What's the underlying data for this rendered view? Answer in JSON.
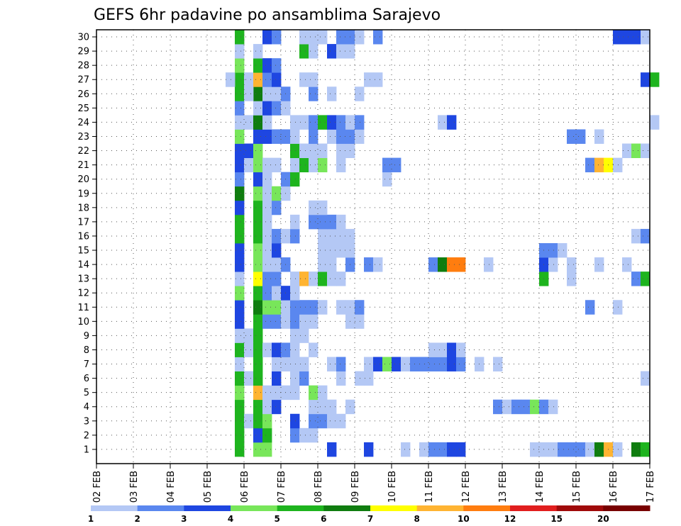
{
  "chart_data": {
    "type": "heatmap",
    "title": "GEFS 6hr padavine po ansamblima Sarajevo",
    "xlabel": "",
    "ylabel": "",
    "x_ticks": [
      "02 FEB",
      "03 FEB",
      "04 FEB",
      "05 FEB",
      "06 FEB",
      "07 FEB",
      "08 FEB",
      "09 FEB",
      "10 FEB",
      "11 FEB",
      "12 FEB",
      "13 FEB",
      "14 FEB",
      "15 FEB",
      "16 FEB",
      "17 FEB"
    ],
    "y_ticks": [
      "1",
      "2",
      "3",
      "4",
      "5",
      "6",
      "7",
      "8",
      "9",
      "10",
      "11",
      "12",
      "13",
      "14",
      "15",
      "16",
      "17",
      "18",
      "19",
      "20",
      "21",
      "22",
      "23",
      "24",
      "25",
      "26",
      "27",
      "28",
      "29",
      "30"
    ],
    "time_step_hours": 6,
    "grid": "dotted",
    "colorbar": {
      "ticks": [
        "1",
        "2",
        "3",
        "4",
        "5",
        "6",
        "7",
        "8",
        "10",
        "12",
        "15",
        "20"
      ],
      "colors": [
        "#b4c8f5",
        "#5a87ef",
        "#1e46e1",
        "#78e65a",
        "#1eb41e",
        "#0f7d0f",
        "#ffff00",
        "#ffb432",
        "#ff7d0f",
        "#e11e1e",
        "#a00a0a",
        "#780000"
      ]
    },
    "cells": [
      [
        1,
        6.25,
        4
      ],
      [
        1,
        6.5,
        4
      ],
      [
        1,
        5.75,
        5
      ],
      [
        1,
        8.25,
        3
      ],
      [
        1,
        9.25,
        3
      ],
      [
        1,
        10.25,
        1
      ],
      [
        1,
        10.75,
        1
      ],
      [
        1,
        11.0,
        2
      ],
      [
        1,
        11.25,
        2
      ],
      [
        1,
        11.5,
        3
      ],
      [
        1,
        11.75,
        3
      ],
      [
        1,
        14.0,
        1
      ],
      [
        1,
        14.25,
        1
      ],
      [
        1,
        14.5,
        2
      ],
      [
        1,
        14.75,
        2
      ],
      [
        1,
        15.0,
        2
      ],
      [
        1,
        15.25,
        1
      ],
      [
        1,
        15.5,
        6
      ],
      [
        1,
        15.75,
        8
      ],
      [
        1,
        16.5,
        6
      ],
      [
        1,
        16.75,
        5
      ],
      [
        1,
        16.0,
        1
      ],
      [
        1,
        13.75,
        1
      ],
      [
        2,
        5.75,
        5
      ],
      [
        2,
        6.25,
        3
      ],
      [
        2,
        6.5,
        5
      ],
      [
        2,
        7.25,
        2
      ],
      [
        2,
        7.5,
        1
      ],
      [
        2,
        7.75,
        1
      ],
      [
        3,
        5.75,
        5
      ],
      [
        3,
        6.0,
        1
      ],
      [
        3,
        6.25,
        5
      ],
      [
        3,
        6.5,
        4
      ],
      [
        3,
        7.25,
        3
      ],
      [
        3,
        7.75,
        2
      ],
      [
        3,
        8.0,
        2
      ],
      [
        3,
        8.25,
        1
      ],
      [
        3,
        8.5,
        1
      ],
      [
        4,
        5.75,
        5
      ],
      [
        4,
        6.25,
        5
      ],
      [
        4,
        6.5,
        1
      ],
      [
        4,
        6.75,
        3
      ],
      [
        4,
        7.75,
        1
      ],
      [
        4,
        8.0,
        1
      ],
      [
        4,
        8.25,
        1
      ],
      [
        4,
        8.75,
        1
      ],
      [
        4,
        12.75,
        2
      ],
      [
        4,
        13.0,
        1
      ],
      [
        4,
        13.25,
        2
      ],
      [
        4,
        13.5,
        2
      ],
      [
        4,
        13.75,
        4
      ],
      [
        4,
        14.0,
        2
      ],
      [
        4,
        14.25,
        1
      ],
      [
        5,
        5.75,
        4
      ],
      [
        5,
        6.25,
        8
      ],
      [
        5,
        6.5,
        1
      ],
      [
        5,
        6.75,
        1
      ],
      [
        5,
        7.0,
        1
      ],
      [
        5,
        7.25,
        1
      ],
      [
        5,
        7.75,
        4
      ],
      [
        5,
        8.0,
        1
      ],
      [
        6,
        5.75,
        5
      ],
      [
        6,
        6.0,
        1
      ],
      [
        6,
        6.25,
        5
      ],
      [
        6,
        6.75,
        3
      ],
      [
        6,
        7.25,
        1
      ],
      [
        6,
        7.5,
        2
      ],
      [
        6,
        8.5,
        1
      ],
      [
        6,
        9.0,
        1
      ],
      [
        6,
        9.25,
        1
      ],
      [
        6,
        16.75,
        1
      ],
      [
        7,
        5.75,
        1
      ],
      [
        7,
        6.25,
        5
      ],
      [
        7,
        6.75,
        1
      ],
      [
        7,
        7.0,
        1
      ],
      [
        7,
        7.25,
        1
      ],
      [
        7,
        7.5,
        1
      ],
      [
        7,
        8.25,
        1
      ],
      [
        7,
        8.5,
        2
      ],
      [
        7,
        9.25,
        1
      ],
      [
        7,
        9.5,
        3
      ],
      [
        7,
        9.75,
        4
      ],
      [
        7,
        10.0,
        3
      ],
      [
        7,
        10.25,
        1
      ],
      [
        7,
        10.5,
        2
      ],
      [
        7,
        10.75,
        2
      ],
      [
        7,
        11.0,
        2
      ],
      [
        7,
        11.25,
        2
      ],
      [
        7,
        11.5,
        3
      ],
      [
        7,
        11.75,
        2
      ],
      [
        7,
        12.25,
        1
      ],
      [
        7,
        12.75,
        1
      ],
      [
        8,
        5.75,
        5
      ],
      [
        8,
        6.0,
        1
      ],
      [
        8,
        6.25,
        5
      ],
      [
        8,
        6.5,
        1
      ],
      [
        8,
        6.75,
        3
      ],
      [
        8,
        7.0,
        2
      ],
      [
        8,
        7.25,
        1
      ],
      [
        8,
        7.75,
        1
      ],
      [
        8,
        11.0,
        1
      ],
      [
        8,
        11.25,
        1
      ],
      [
        8,
        11.5,
        3
      ],
      [
        8,
        11.75,
        1
      ],
      [
        9,
        5.75,
        1
      ],
      [
        9,
        6.0,
        1
      ],
      [
        9,
        6.25,
        5
      ],
      [
        9,
        7.25,
        1
      ],
      [
        9,
        7.5,
        1
      ],
      [
        10,
        5.75,
        3
      ],
      [
        10,
        6.25,
        5
      ],
      [
        10,
        6.5,
        2
      ],
      [
        10,
        6.75,
        2
      ],
      [
        10,
        7.0,
        1
      ],
      [
        10,
        7.25,
        2
      ],
      [
        10,
        7.5,
        1
      ],
      [
        10,
        7.75,
        1
      ],
      [
        10,
        8.75,
        1
      ],
      [
        10,
        9.0,
        1
      ],
      [
        11,
        5.75,
        3
      ],
      [
        11,
        6.25,
        6
      ],
      [
        11,
        6.5,
        4
      ],
      [
        11,
        6.75,
        4
      ],
      [
        11,
        7.0,
        1
      ],
      [
        11,
        7.25,
        2
      ],
      [
        11,
        7.5,
        2
      ],
      [
        11,
        7.75,
        2
      ],
      [
        11,
        8.0,
        1
      ],
      [
        11,
        8.5,
        1
      ],
      [
        11,
        8.75,
        1
      ],
      [
        11,
        9.0,
        2
      ],
      [
        11,
        15.25,
        2
      ],
      [
        11,
        16.0,
        1
      ],
      [
        12,
        5.75,
        4
      ],
      [
        12,
        6.25,
        5
      ],
      [
        12,
        6.5,
        2
      ],
      [
        12,
        6.75,
        1
      ],
      [
        12,
        7.0,
        3
      ],
      [
        12,
        7.25,
        1
      ],
      [
        13,
        5.75,
        1
      ],
      [
        13,
        6.25,
        7
      ],
      [
        13,
        6.5,
        2
      ],
      [
        13,
        6.75,
        2
      ],
      [
        13,
        7.25,
        1
      ],
      [
        13,
        7.5,
        8
      ],
      [
        13,
        7.75,
        1
      ],
      [
        13,
        8.0,
        5
      ],
      [
        13,
        8.25,
        1
      ],
      [
        13,
        8.5,
        1
      ],
      [
        13,
        14.0,
        5
      ],
      [
        13,
        14.75,
        1
      ],
      [
        13,
        16.5,
        2
      ],
      [
        13,
        16.75,
        5
      ],
      [
        14,
        5.75,
        3
      ],
      [
        14,
        6.25,
        4
      ],
      [
        14,
        6.5,
        1
      ],
      [
        14,
        6.75,
        1
      ],
      [
        14,
        7.0,
        2
      ],
      [
        14,
        8.0,
        1
      ],
      [
        14,
        8.25,
        1
      ],
      [
        14,
        8.75,
        2
      ],
      [
        14,
        9.25,
        2
      ],
      [
        14,
        9.5,
        1
      ],
      [
        14,
        11.0,
        2
      ],
      [
        14,
        11.25,
        6
      ],
      [
        14,
        11.5,
        9
      ],
      [
        14,
        11.75,
        9
      ],
      [
        14,
        12.5,
        1
      ],
      [
        14,
        14.0,
        3
      ],
      [
        14,
        14.25,
        1
      ],
      [
        14,
        14.75,
        1
      ],
      [
        14,
        15.5,
        1
      ],
      [
        14,
        16.25,
        1
      ],
      [
        15,
        5.75,
        3
      ],
      [
        15,
        6.25,
        4
      ],
      [
        15,
        6.5,
        1
      ],
      [
        15,
        6.75,
        3
      ],
      [
        15,
        8.0,
        1
      ],
      [
        15,
        8.25,
        1
      ],
      [
        15,
        8.5,
        1
      ],
      [
        15,
        8.75,
        1
      ],
      [
        15,
        14.0,
        2
      ],
      [
        15,
        14.25,
        2
      ],
      [
        15,
        14.5,
        1
      ],
      [
        16,
        5.75,
        5
      ],
      [
        16,
        6.25,
        5
      ],
      [
        16,
        6.5,
        1
      ],
      [
        16,
        6.75,
        2
      ],
      [
        16,
        7.0,
        1
      ],
      [
        16,
        7.25,
        2
      ],
      [
        16,
        8.0,
        1
      ],
      [
        16,
        8.25,
        1
      ],
      [
        16,
        8.5,
        1
      ],
      [
        16,
        8.75,
        1
      ],
      [
        16,
        16.5,
        1
      ],
      [
        16,
        16.75,
        2
      ],
      [
        17,
        5.75,
        5
      ],
      [
        17,
        6.25,
        5
      ],
      [
        17,
        6.5,
        1
      ],
      [
        17,
        7.25,
        1
      ],
      [
        17,
        7.75,
        2
      ],
      [
        17,
        8.0,
        2
      ],
      [
        17,
        8.25,
        2
      ],
      [
        17,
        8.5,
        1
      ],
      [
        18,
        5.75,
        3
      ],
      [
        18,
        6.25,
        5
      ],
      [
        18,
        6.5,
        1
      ],
      [
        18,
        6.75,
        2
      ],
      [
        18,
        7.75,
        1
      ],
      [
        18,
        8.0,
        1
      ],
      [
        19,
        5.75,
        6
      ],
      [
        19,
        6.25,
        4
      ],
      [
        19,
        6.5,
        1
      ],
      [
        19,
        6.75,
        4
      ],
      [
        19,
        7.0,
        1
      ],
      [
        20,
        5.75,
        2
      ],
      [
        20,
        6.25,
        3
      ],
      [
        20,
        6.5,
        1
      ],
      [
        20,
        7.0,
        2
      ],
      [
        20,
        7.25,
        5
      ],
      [
        20,
        9.75,
        1
      ],
      [
        21,
        5.75,
        3
      ],
      [
        21,
        6.0,
        1
      ],
      [
        21,
        6.25,
        4
      ],
      [
        21,
        6.5,
        1
      ],
      [
        21,
        6.75,
        1
      ],
      [
        21,
        7.25,
        1
      ],
      [
        21,
        7.5,
        5
      ],
      [
        21,
        7.75,
        1
      ],
      [
        21,
        8.0,
        4
      ],
      [
        21,
        8.5,
        1
      ],
      [
        21,
        9.75,
        2
      ],
      [
        21,
        10.0,
        2
      ],
      [
        21,
        15.25,
        2
      ],
      [
        21,
        15.5,
        8
      ],
      [
        21,
        15.75,
        7
      ],
      [
        21,
        16.0,
        1
      ],
      [
        22,
        5.75,
        3
      ],
      [
        22,
        6.0,
        3
      ],
      [
        22,
        6.25,
        4
      ],
      [
        22,
        7.25,
        5
      ],
      [
        22,
        7.5,
        1
      ],
      [
        22,
        7.75,
        1
      ],
      [
        22,
        8.0,
        1
      ],
      [
        22,
        8.5,
        1
      ],
      [
        22,
        8.75,
        1
      ],
      [
        22,
        16.25,
        1
      ],
      [
        22,
        16.5,
        4
      ],
      [
        22,
        16.75,
        1
      ],
      [
        23,
        5.75,
        4
      ],
      [
        23,
        6.25,
        3
      ],
      [
        23,
        6.5,
        3
      ],
      [
        23,
        6.75,
        2
      ],
      [
        23,
        7.0,
        2
      ],
      [
        23,
        7.25,
        1
      ],
      [
        23,
        7.75,
        2
      ],
      [
        23,
        8.25,
        1
      ],
      [
        23,
        8.5,
        2
      ],
      [
        23,
        8.75,
        2
      ],
      [
        23,
        9.0,
        1
      ],
      [
        23,
        14.75,
        2
      ],
      [
        23,
        15.0,
        2
      ],
      [
        23,
        15.5,
        1
      ],
      [
        24,
        5.75,
        1
      ],
      [
        24,
        6.0,
        1
      ],
      [
        24,
        6.25,
        6
      ],
      [
        24,
        6.5,
        1
      ],
      [
        24,
        7.25,
        1
      ],
      [
        24,
        7.5,
        1
      ],
      [
        24,
        7.75,
        2
      ],
      [
        24,
        8.0,
        5
      ],
      [
        24,
        8.25,
        3
      ],
      [
        24,
        8.5,
        2
      ],
      [
        24,
        8.75,
        1
      ],
      [
        24,
        9.0,
        2
      ],
      [
        24,
        11.25,
        1
      ],
      [
        24,
        11.5,
        3
      ],
      [
        24,
        17.0,
        1
      ],
      [
        25,
        5.75,
        2
      ],
      [
        25,
        6.25,
        1
      ],
      [
        25,
        6.5,
        3
      ],
      [
        25,
        6.75,
        2
      ],
      [
        25,
        7.0,
        1
      ],
      [
        26,
        5.75,
        5
      ],
      [
        26,
        6.25,
        6
      ],
      [
        26,
        6.0,
        1
      ],
      [
        26,
        6.5,
        1
      ],
      [
        26,
        6.75,
        1
      ],
      [
        26,
        7.0,
        2
      ],
      [
        26,
        7.75,
        2
      ],
      [
        26,
        8.25,
        1
      ],
      [
        26,
        9.0,
        1
      ],
      [
        27,
        5.75,
        5
      ],
      [
        27,
        5.5,
        1
      ],
      [
        27,
        6.0,
        1
      ],
      [
        27,
        6.25,
        8
      ],
      [
        27,
        6.5,
        2
      ],
      [
        27,
        6.75,
        3
      ],
      [
        27,
        7.5,
        1
      ],
      [
        27,
        7.75,
        1
      ],
      [
        27,
        9.25,
        1
      ],
      [
        27,
        9.5,
        1
      ],
      [
        27,
        16.75,
        3
      ],
      [
        27,
        17.0,
        5
      ],
      [
        28,
        5.75,
        4
      ],
      [
        28,
        6.25,
        5
      ],
      [
        28,
        6.5,
        3
      ],
      [
        28,
        6.75,
        2
      ],
      [
        29,
        5.75,
        1
      ],
      [
        29,
        6.25,
        1
      ],
      [
        29,
        7.5,
        5
      ],
      [
        29,
        7.75,
        1
      ],
      [
        29,
        8.25,
        3
      ],
      [
        29,
        8.5,
        1
      ],
      [
        29,
        8.75,
        1
      ],
      [
        30,
        5.75,
        5
      ],
      [
        30,
        6.5,
        3
      ],
      [
        30,
        6.75,
        2
      ],
      [
        30,
        7.5,
        1
      ],
      [
        30,
        7.75,
        1
      ],
      [
        30,
        8.0,
        1
      ],
      [
        30,
        8.5,
        2
      ],
      [
        30,
        8.75,
        2
      ],
      [
        30,
        9.0,
        1
      ],
      [
        30,
        9.5,
        2
      ],
      [
        30,
        16.0,
        3
      ],
      [
        30,
        16.25,
        3
      ],
      [
        30,
        16.5,
        3
      ],
      [
        30,
        16.75,
        1
      ]
    ]
  }
}
